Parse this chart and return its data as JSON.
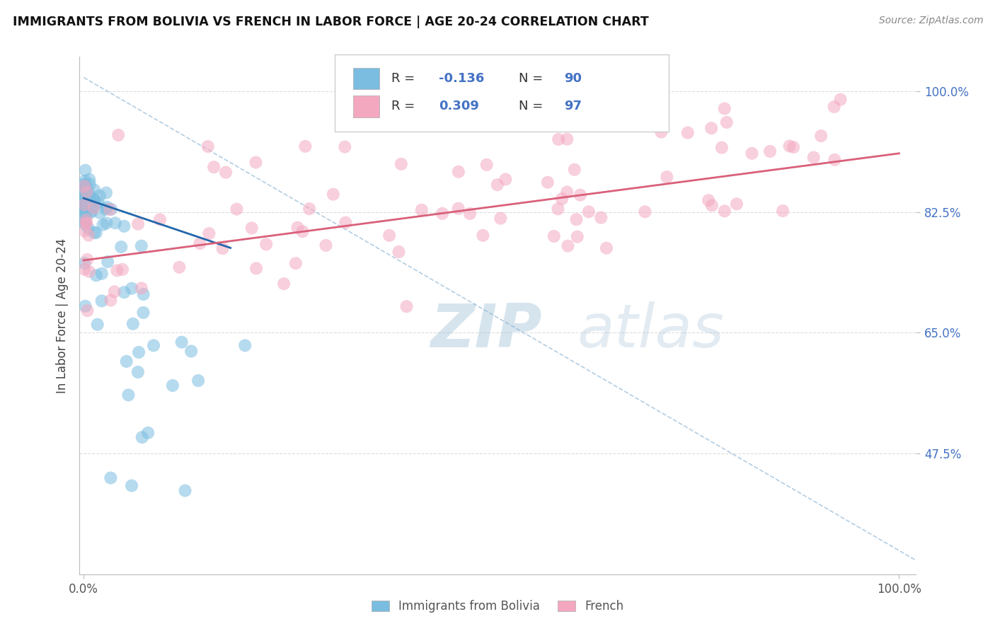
{
  "title": "IMMIGRANTS FROM BOLIVIA VS FRENCH IN LABOR FORCE | AGE 20-24 CORRELATION CHART",
  "source": "Source: ZipAtlas.com",
  "ylabel": "In Labor Force | Age 20-24",
  "bolivia_color": "#7bbde0",
  "french_color": "#f4a8c0",
  "bolivia_R": -0.136,
  "bolivia_N": 90,
  "french_R": 0.309,
  "french_N": 97,
  "bolivia_line_color": "#2266aa",
  "french_line_color": "#d9607a",
  "diagonal_color": "#aac8e0",
  "grid_color": "#dddddd",
  "ytick_color": "#4472c4",
  "xtick_color": "#555555",
  "watermark_color": "#c8d8ea",
  "xlim": [
    0.0,
    1.0
  ],
  "ylim": [
    0.3,
    1.05
  ],
  "yticks": [
    1.0,
    0.825,
    0.65,
    0.475
  ],
  "ytick_labels": [
    "100.0%",
    "82.5%",
    "65.0%",
    "47.5%"
  ],
  "bolivia_seed": 1234,
  "french_seed": 5678
}
